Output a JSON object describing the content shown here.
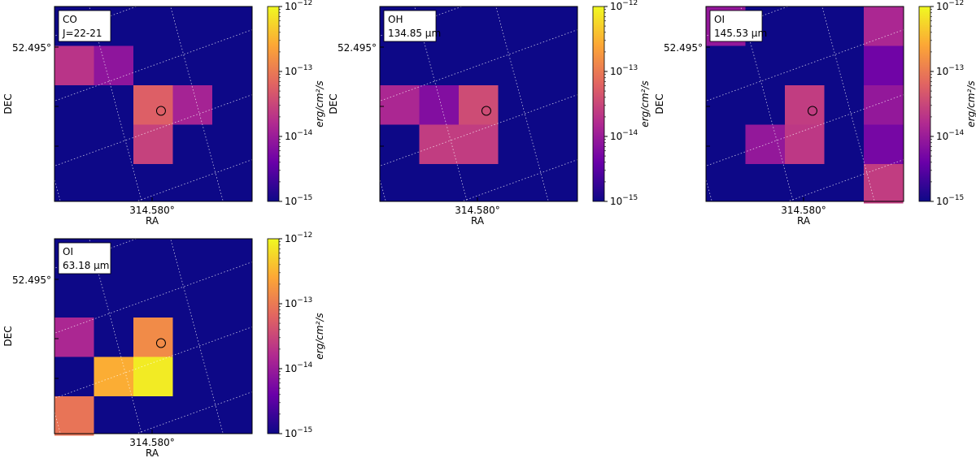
{
  "colormap": {
    "stops": [
      "#0d0887",
      "#6a00a8",
      "#b12a90",
      "#e16462",
      "#fca636",
      "#f0f921"
    ],
    "background": "#0d0887"
  },
  "chart_data": [
    {
      "type": "heatmap",
      "label_lines": [
        "CO",
        "J=22-21"
      ],
      "xlabel": "RA",
      "ylabel": "DEC",
      "xtick": "314.580°",
      "ytick": "52.495°",
      "grid": "dotted-white",
      "colorbar": {
        "label": "erg/cm²/s",
        "scale": "log",
        "min_exp": -15,
        "max_exp": -12,
        "tick_exps": [
          -15,
          -14,
          -13,
          -12
        ]
      },
      "cells": [
        {
          "col": 0,
          "row": 1,
          "log_value": -13.7
        },
        {
          "col": 1,
          "row": 1,
          "log_value": -14.1
        },
        {
          "col": 2,
          "row": 2,
          "log_value": -13.25
        },
        {
          "col": 3,
          "row": 2,
          "log_value": -13.9
        },
        {
          "col": 2,
          "row": 3,
          "log_value": -13.55
        }
      ],
      "marker": {
        "col": 2.7,
        "row": 2.65
      }
    },
    {
      "type": "heatmap",
      "label_lines": [
        "OH",
        "134.85 μm"
      ],
      "xlabel": "RA",
      "ylabel": "DEC",
      "xtick": "314.580°",
      "ytick": "52.495°",
      "grid": "dotted-white",
      "colorbar": {
        "label": "erg/cm²/s",
        "scale": "log",
        "min_exp": -15,
        "max_exp": -12,
        "tick_exps": [
          -15,
          -14,
          -13,
          -12
        ]
      },
      "cells": [
        {
          "col": 0,
          "row": 2,
          "log_value": -13.85
        },
        {
          "col": 1,
          "row": 2,
          "log_value": -14.2
        },
        {
          "col": 2,
          "row": 2,
          "log_value": -13.45
        },
        {
          "col": 1,
          "row": 3,
          "log_value": -13.6
        },
        {
          "col": 2,
          "row": 3,
          "log_value": -13.6
        }
      ],
      "marker": {
        "col": 2.7,
        "row": 2.65
      }
    },
    {
      "type": "heatmap",
      "label_lines": [
        "OI",
        "145.53 μm"
      ],
      "xlabel": "RA",
      "ylabel": "DEC",
      "xtick": "314.580°",
      "ytick": "52.495°",
      "grid": "dotted-white",
      "colorbar": {
        "label": "erg/cm²/s",
        "scale": "log",
        "min_exp": -15,
        "max_exp": -12,
        "tick_exps": [
          -15,
          -14,
          -13,
          -12
        ]
      },
      "cells": [
        {
          "col": 0,
          "row": 0,
          "log_value": -14.05
        },
        {
          "col": 4,
          "row": 0,
          "log_value": -13.85
        },
        {
          "col": 4,
          "row": 1,
          "log_value": -14.35
        },
        {
          "col": 2,
          "row": 2,
          "log_value": -13.6
        },
        {
          "col": 4,
          "row": 2,
          "log_value": -14.05
        },
        {
          "col": 1,
          "row": 3,
          "log_value": -14.05
        },
        {
          "col": 2,
          "row": 3,
          "log_value": -13.65
        },
        {
          "col": 4,
          "row": 3,
          "log_value": -14.3
        },
        {
          "col": 4,
          "row": 4,
          "log_value": -13.6
        }
      ],
      "marker": {
        "col": 2.7,
        "row": 2.65
      }
    },
    {
      "type": "heatmap",
      "label_lines": [
        "OI",
        "63.18 μm"
      ],
      "xlabel": "RA",
      "ylabel": "DEC",
      "xtick": "314.580°",
      "ytick": "52.495°",
      "grid": "dotted-white",
      "colorbar": {
        "label": "erg/cm²/s",
        "scale": "log",
        "min_exp": -15,
        "max_exp": -12,
        "tick_exps": [
          -15,
          -14,
          -13,
          -12
        ]
      },
      "cells": [
        {
          "col": 0,
          "row": 2,
          "log_value": -13.85
        },
        {
          "col": 2,
          "row": 2,
          "log_value": -12.85
        },
        {
          "col": 1,
          "row": 3,
          "log_value": -12.55
        },
        {
          "col": 2,
          "row": 3,
          "log_value": -12.1
        },
        {
          "col": 0,
          "row": 4,
          "log_value": -13.05
        }
      ],
      "marker": {
        "col": 2.7,
        "row": 2.65
      }
    }
  ]
}
